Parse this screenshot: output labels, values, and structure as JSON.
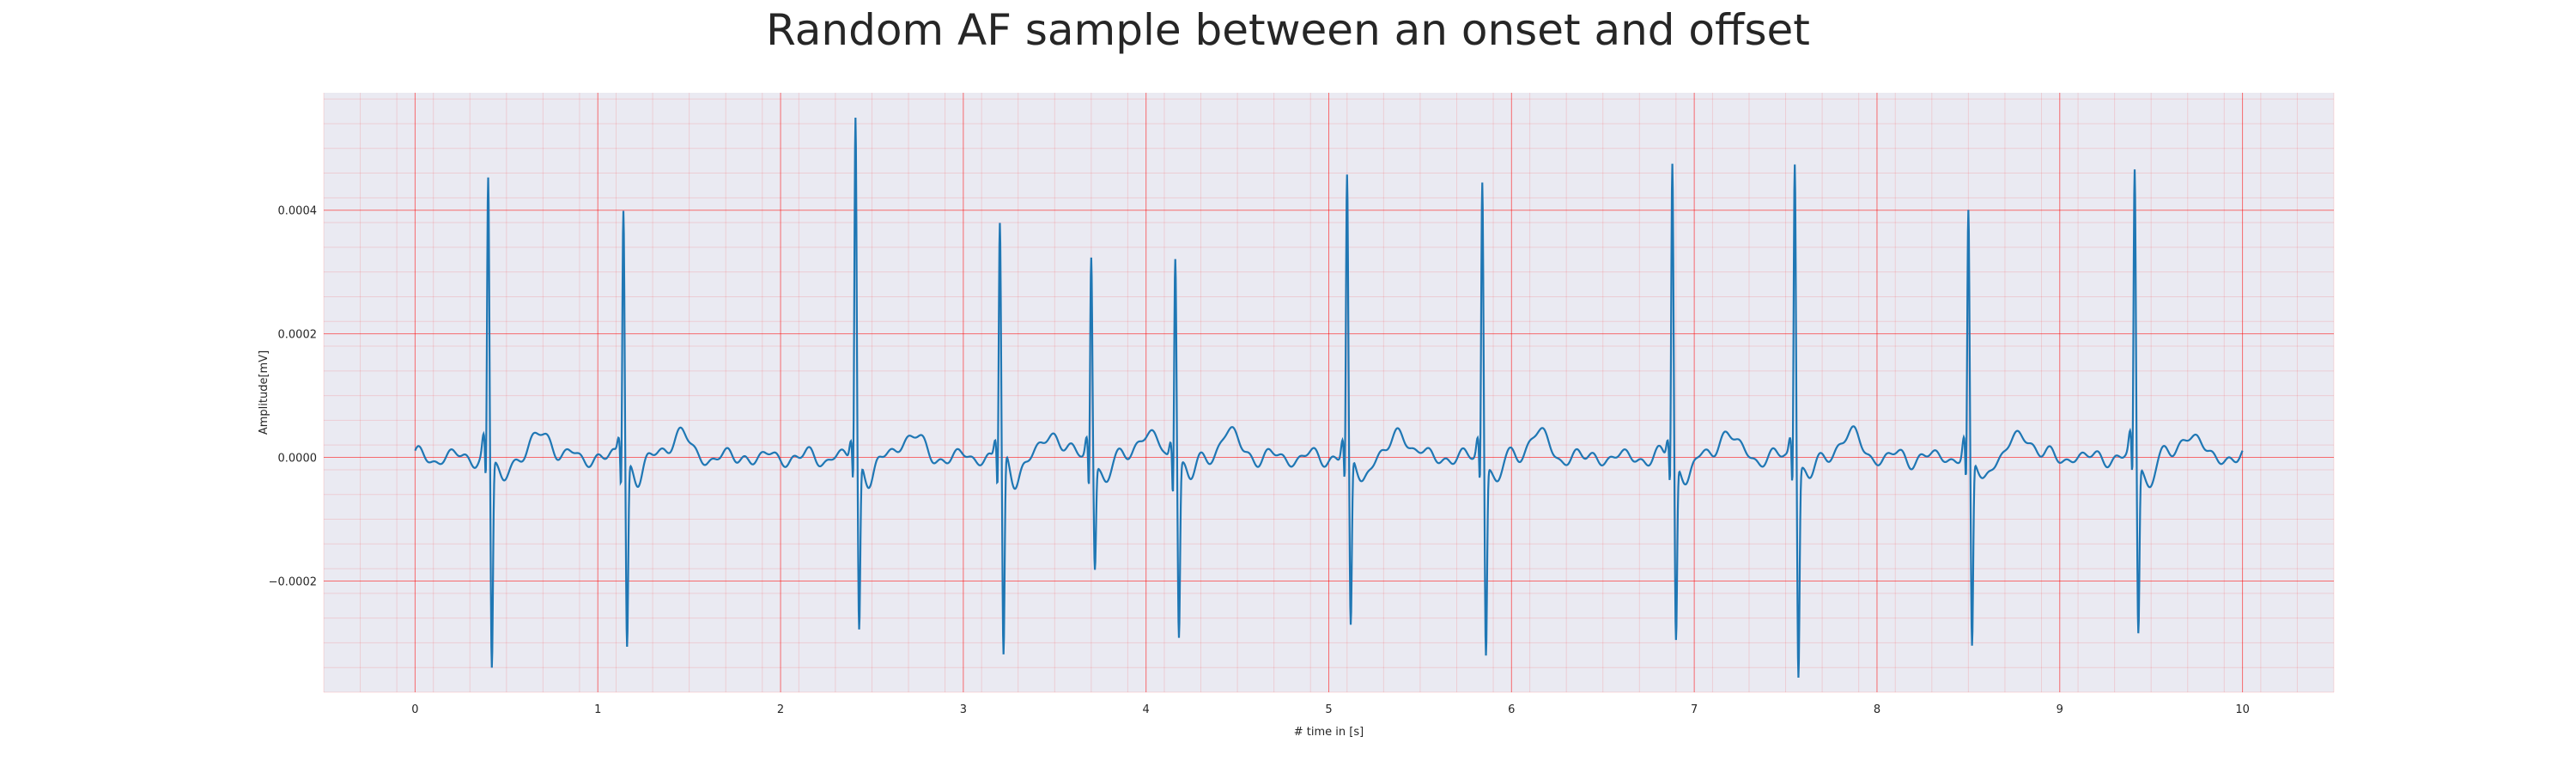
{
  "chart_data": {
    "type": "line",
    "title": "Random AF sample between an onset and offset",
    "xlabel": "# time in [s]",
    "ylabel": "Amplitude[mV]",
    "xlim": [
      -0.5,
      10.5
    ],
    "ylim": [
      -0.00038,
      0.00059
    ],
    "x_ticks": [
      0,
      1,
      2,
      3,
      4,
      5,
      6,
      7,
      8,
      9,
      10
    ],
    "x_tick_labels": [
      "0",
      "1",
      "2",
      "3",
      "4",
      "5",
      "6",
      "7",
      "8",
      "9",
      "10"
    ],
    "y_ticks": [
      -0.0002,
      0.0,
      0.0002,
      0.0004
    ],
    "y_tick_labels": [
      "−0.0002",
      "0.0000",
      "0.0002",
      "0.0004"
    ],
    "grid": "major and minor (red)",
    "line_color": "#1f77b4",
    "background_color": "#eaeaf2",
    "grid_color": "#ff0000",
    "series": [
      {
        "name": "",
        "sampling_note_visible": false,
        "beats": [
          {
            "t": 0.4,
            "r": 0.00045,
            "s": -0.00034
          },
          {
            "t": 1.14,
            "r": 0.00041,
            "s": -0.0003
          },
          {
            "t": 2.41,
            "r": 0.00055,
            "s": -0.00028
          },
          {
            "t": 3.2,
            "r": 0.00038,
            "s": -0.00033
          },
          {
            "t": 3.7,
            "r": 0.00033,
            "s": -0.00017
          },
          {
            "t": 4.16,
            "r": 0.00034,
            "s": -0.00028
          },
          {
            "t": 5.1,
            "r": 0.00045,
            "s": -0.00028
          },
          {
            "t": 5.84,
            "r": 0.00045,
            "s": -0.00031
          },
          {
            "t": 6.88,
            "r": 0.00048,
            "s": -0.00029
          },
          {
            "t": 7.55,
            "r": 0.00049,
            "s": -0.00034
          },
          {
            "t": 8.5,
            "r": 0.00039,
            "s": -0.00031
          },
          {
            "t": 9.41,
            "r": 0.00046,
            "s": -0.00028
          }
        ],
        "x_range": [
          0,
          10
        ]
      }
    ]
  }
}
